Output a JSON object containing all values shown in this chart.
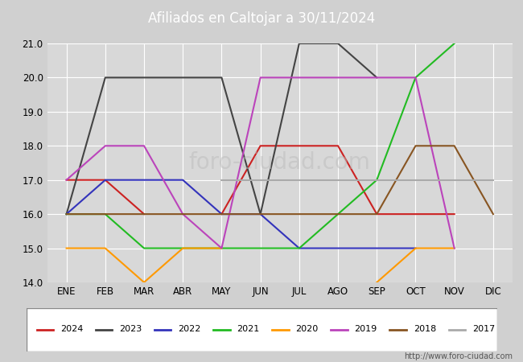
{
  "title": "Afiliados en Caltojar a 30/11/2024",
  "ylim": [
    14.0,
    21.0
  ],
  "yticks": [
    14.0,
    15.0,
    16.0,
    17.0,
    18.0,
    19.0,
    20.0,
    21.0
  ],
  "months": [
    "ENE",
    "FEB",
    "MAR",
    "ABR",
    "MAY",
    "JUN",
    "JUL",
    "AGO",
    "SEP",
    "OCT",
    "NOV",
    "DIC"
  ],
  "fig_bg": "#d0d0d0",
  "plot_bg": "#d8d8d8",
  "title_bg": "#5588cc",
  "series": [
    {
      "year": "2024",
      "color": "#cc2222",
      "values": [
        17,
        17,
        16,
        null,
        16,
        18,
        18,
        18,
        16,
        16,
        16,
        null
      ]
    },
    {
      "year": "2023",
      "color": "#444444",
      "values": [
        16,
        20,
        20,
        20,
        20,
        16,
        21,
        21,
        20,
        null,
        null,
        null
      ]
    },
    {
      "year": "2022",
      "color": "#3333bb",
      "values": [
        16,
        17,
        17,
        17,
        16,
        16,
        15,
        15,
        15,
        15,
        null,
        null
      ]
    },
    {
      "year": "2021",
      "color": "#22bb22",
      "values": [
        16,
        16,
        15,
        15,
        15,
        15,
        15,
        16,
        17,
        20,
        21,
        null
      ]
    },
    {
      "year": "2020",
      "color": "#ff9900",
      "values": [
        15,
        15,
        14,
        15,
        15,
        null,
        null,
        null,
        14,
        15,
        15,
        null
      ]
    },
    {
      "year": "2019",
      "color": "#bb44bb",
      "values": [
        17,
        18,
        18,
        16,
        15,
        20,
        20,
        20,
        20,
        20,
        15,
        null
      ]
    },
    {
      "year": "2018",
      "color": "#885522",
      "values": [
        16,
        16,
        16,
        16,
        16,
        16,
        16,
        16,
        16,
        18,
        18,
        16
      ]
    },
    {
      "year": "2017",
      "color": "#aaaaaa",
      "values": [
        null,
        null,
        null,
        null,
        17,
        17,
        17,
        17,
        17,
        17,
        17,
        17
      ]
    }
  ],
  "url": "http://www.foro-ciudad.com",
  "legend_years": [
    "2024",
    "2023",
    "2022",
    "2021",
    "2020",
    "2019",
    "2018",
    "2017"
  ],
  "legend_colors": [
    "#cc2222",
    "#444444",
    "#3333bb",
    "#22bb22",
    "#ff9900",
    "#bb44bb",
    "#885522",
    "#aaaaaa"
  ]
}
